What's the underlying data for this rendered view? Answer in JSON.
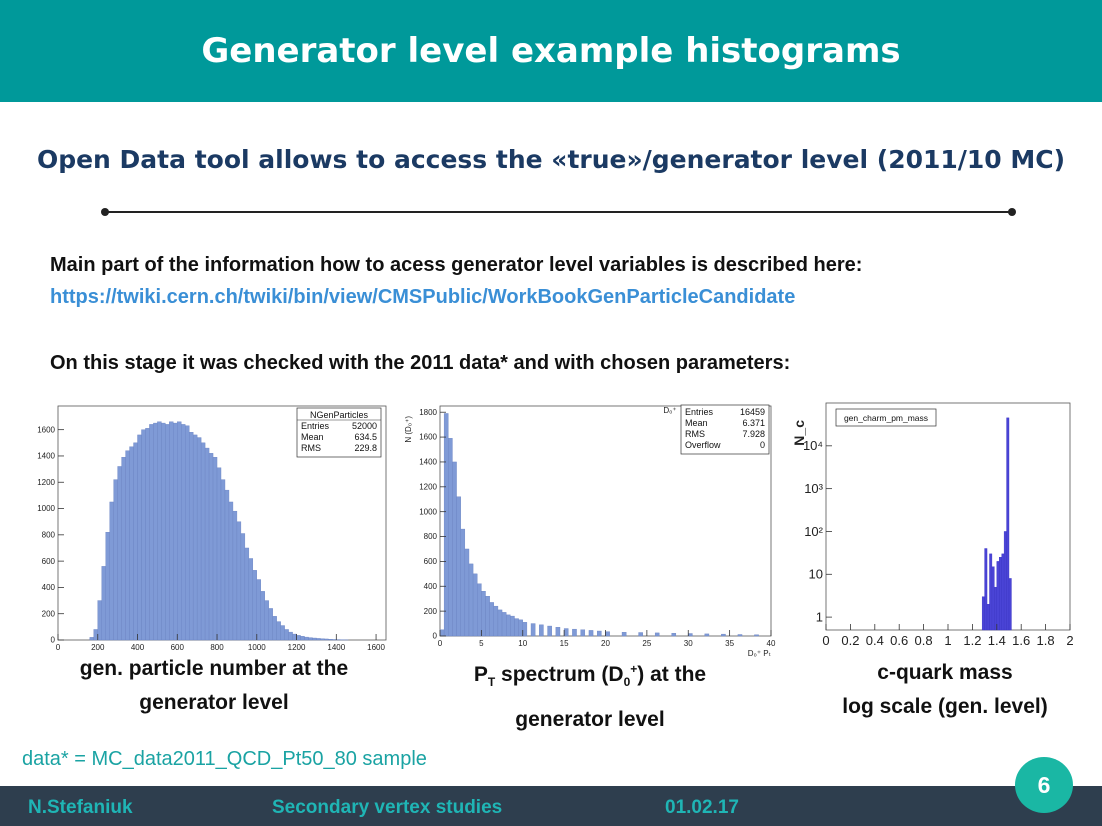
{
  "header": {
    "title": "Generator level example histograms"
  },
  "subtitle": "Open Data tool allows to access the «true»/generator level (2011/10 MC)",
  "intro": "Main part of the information how to acess generator level variables is described here:",
  "link": "https://twiki.cern.ch/twiki/bin/view/CMSPublic/WorkBookGenParticleCandidate",
  "stage": "On this stage it was checked with the 2011 data* and with chosen parameters:",
  "captions": {
    "c1_line1": "gen. particle number at the",
    "c1_line2": "generator level",
    "c2_p": "P",
    "c2_t": "T",
    "c2_mid": " spectrum (D",
    "c2_0": "0",
    "c2_plus": "+",
    "c2_end": ") at the",
    "c2_line2": "generator level",
    "c3_line1": "c-quark mass",
    "c3_line2": "log scale (gen. level)"
  },
  "footnote": "data* = MC_data2011_QCD_Pt50_80 sample",
  "footer": {
    "author": "N.Stefaniuk",
    "topic": "Secondary vertex studies",
    "date": "01.02.17",
    "page": "6"
  },
  "chart_data": [
    {
      "type": "bar",
      "histogram": true,
      "title": "NGenParticles",
      "stats": [
        [
          "Entries",
          "52000"
        ],
        [
          "Mean",
          "634.5"
        ],
        [
          "RMS",
          "229.8"
        ]
      ],
      "xlim": [
        0,
        1650
      ],
      "ylim": [
        0,
        1780
      ],
      "xticks": [
        "0",
        "200",
        "400",
        "600",
        "800",
        "1000",
        "1200",
        "1400",
        "1600"
      ],
      "xtick_values": [
        0,
        200,
        400,
        600,
        800,
        1000,
        1200,
        1400,
        1600
      ],
      "yticks": [
        "0",
        "200",
        "400",
        "600",
        "800",
        "1000",
        "1200",
        "1400",
        "1600"
      ],
      "ytick_values": [
        0,
        200,
        400,
        600,
        800,
        1000,
        1200,
        1400,
        1600
      ],
      "bin_width": 20,
      "x": [
        160,
        180,
        200,
        220,
        240,
        260,
        280,
        300,
        320,
        340,
        360,
        380,
        400,
        420,
        440,
        460,
        480,
        500,
        520,
        540,
        560,
        580,
        600,
        620,
        640,
        660,
        680,
        700,
        720,
        740,
        760,
        780,
        800,
        820,
        840,
        860,
        880,
        900,
        920,
        940,
        960,
        980,
        1000,
        1020,
        1040,
        1060,
        1080,
        1100,
        1120,
        1140,
        1160,
        1180,
        1200,
        1220,
        1240,
        1260,
        1280,
        1300,
        1320,
        1340,
        1360,
        1380,
        1400,
        1420,
        1440
      ],
      "values": [
        20,
        80,
        300,
        560,
        820,
        1050,
        1220,
        1320,
        1390,
        1440,
        1470,
        1500,
        1560,
        1600,
        1610,
        1640,
        1650,
        1660,
        1650,
        1640,
        1660,
        1650,
        1660,
        1640,
        1630,
        1580,
        1560,
        1540,
        1500,
        1460,
        1420,
        1390,
        1310,
        1220,
        1140,
        1050,
        980,
        900,
        810,
        700,
        620,
        530,
        460,
        370,
        300,
        240,
        180,
        140,
        110,
        80,
        60,
        45,
        35,
        28,
        22,
        18,
        15,
        12,
        10,
        8,
        6,
        4,
        3,
        2,
        1
      ]
    },
    {
      "type": "bar",
      "histogram": true,
      "title": "D₀⁺",
      "ylabel": "N (D₀⁺)",
      "xlabel": "D₀⁺ Pₜ",
      "stats": [
        [
          "Entries",
          "16459"
        ],
        [
          "Mean",
          "6.371"
        ],
        [
          "RMS",
          "7.928"
        ],
        [
          "Overflow",
          "0"
        ]
      ],
      "xlim": [
        0,
        40
      ],
      "ylim": [
        0,
        1850
      ],
      "xticks": [
        "0",
        "5",
        "10",
        "15",
        "20",
        "25",
        "30",
        "35",
        "40"
      ],
      "xtick_values": [
        0,
        5,
        10,
        15,
        20,
        25,
        30,
        35,
        40
      ],
      "yticks": [
        "0",
        "200",
        "400",
        "600",
        "800",
        "1000",
        "1200",
        "1400",
        "1600",
        "1800"
      ],
      "ytick_values": [
        0,
        200,
        400,
        600,
        800,
        1000,
        1200,
        1400,
        1600,
        1800
      ],
      "bin_width": 0.5,
      "x": [
        0,
        0.5,
        1,
        1.5,
        2,
        2.5,
        3,
        3.5,
        4,
        4.5,
        5,
        5.5,
        6,
        6.5,
        7,
        7.5,
        8,
        8.5,
        9,
        9.5,
        10,
        11,
        12,
        13,
        14,
        15,
        16,
        17,
        18,
        19,
        20,
        22,
        24,
        26,
        28,
        30,
        32,
        34,
        36,
        38
      ],
      "values": [
        50,
        1790,
        1590,
        1400,
        1120,
        860,
        700,
        580,
        500,
        420,
        360,
        320,
        270,
        240,
        210,
        190,
        170,
        160,
        140,
        130,
        110,
        100,
        90,
        80,
        70,
        60,
        55,
        50,
        45,
        40,
        35,
        30,
        28,
        25,
        22,
        20,
        17,
        15,
        12,
        10
      ]
    },
    {
      "type": "bar",
      "histogram": true,
      "log_scale": true,
      "title": "gen_charm_pm_mass",
      "ylabel": "N_c",
      "xlim": [
        0,
        2
      ],
      "ylim": [
        0.5,
        100000
      ],
      "xticks": [
        "0",
        "0.2",
        "0.4",
        "0.6",
        "0.8",
        "1",
        "1.2",
        "1.4",
        "1.6",
        "1.8",
        "2"
      ],
      "xtick_values": [
        0,
        0.2,
        0.4,
        0.6,
        0.8,
        1,
        1.2,
        1.4,
        1.6,
        1.8,
        2
      ],
      "yticks": [
        "1",
        "10",
        "10²",
        "10³",
        "10⁴"
      ],
      "ytick_values": [
        1,
        10,
        100,
        1000,
        10000
      ],
      "bin_width": 0.02,
      "x": [
        1.28,
        1.3,
        1.32,
        1.34,
        1.36,
        1.38,
        1.4,
        1.42,
        1.44,
        1.46,
        1.48,
        1.5
      ],
      "values": [
        3,
        40,
        2,
        30,
        15,
        5,
        20,
        25,
        30,
        100,
        45000,
        8
      ]
    }
  ]
}
